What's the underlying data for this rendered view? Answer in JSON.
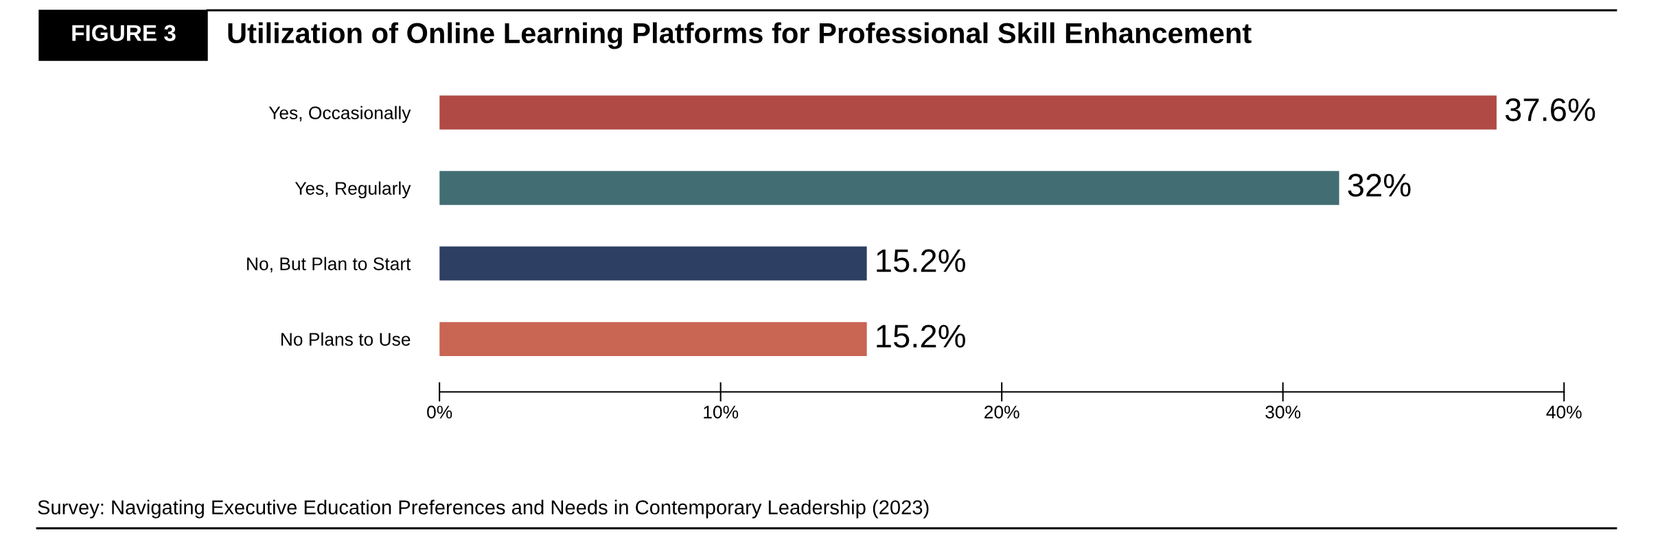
{
  "chart_data": {
    "type": "bar",
    "orientation": "horizontal",
    "title": "Utilization of Online Learning Platforms for Professional Skill Enhancement",
    "categories": [
      "Yes, Occasionally",
      "Yes, Regularly",
      "No, But Plan to Start",
      "No Plans to Use"
    ],
    "values": [
      37.6,
      32,
      15.2,
      15.2
    ],
    "colors": [
      "#b04a45",
      "#426e73",
      "#2d3f63",
      "#c86553"
    ],
    "value_labels": [
      "37.6%",
      "32%",
      "15.2%",
      "15.2%"
    ],
    "xlim": [
      0,
      40
    ],
    "xticks": [
      {
        "value": 0,
        "label": "0%"
      },
      {
        "value": 10,
        "label": "10%"
      },
      {
        "value": 20,
        "label": "20%"
      },
      {
        "value": 30,
        "label": "30%"
      },
      {
        "value": 40,
        "label": "40%"
      }
    ],
    "grid": false,
    "legend": false,
    "annotations": [
      "FIGURE 3",
      "Survey: Navigating Executive Education Preferences and Needs in Contemporary Leadership (2023)"
    ]
  }
}
